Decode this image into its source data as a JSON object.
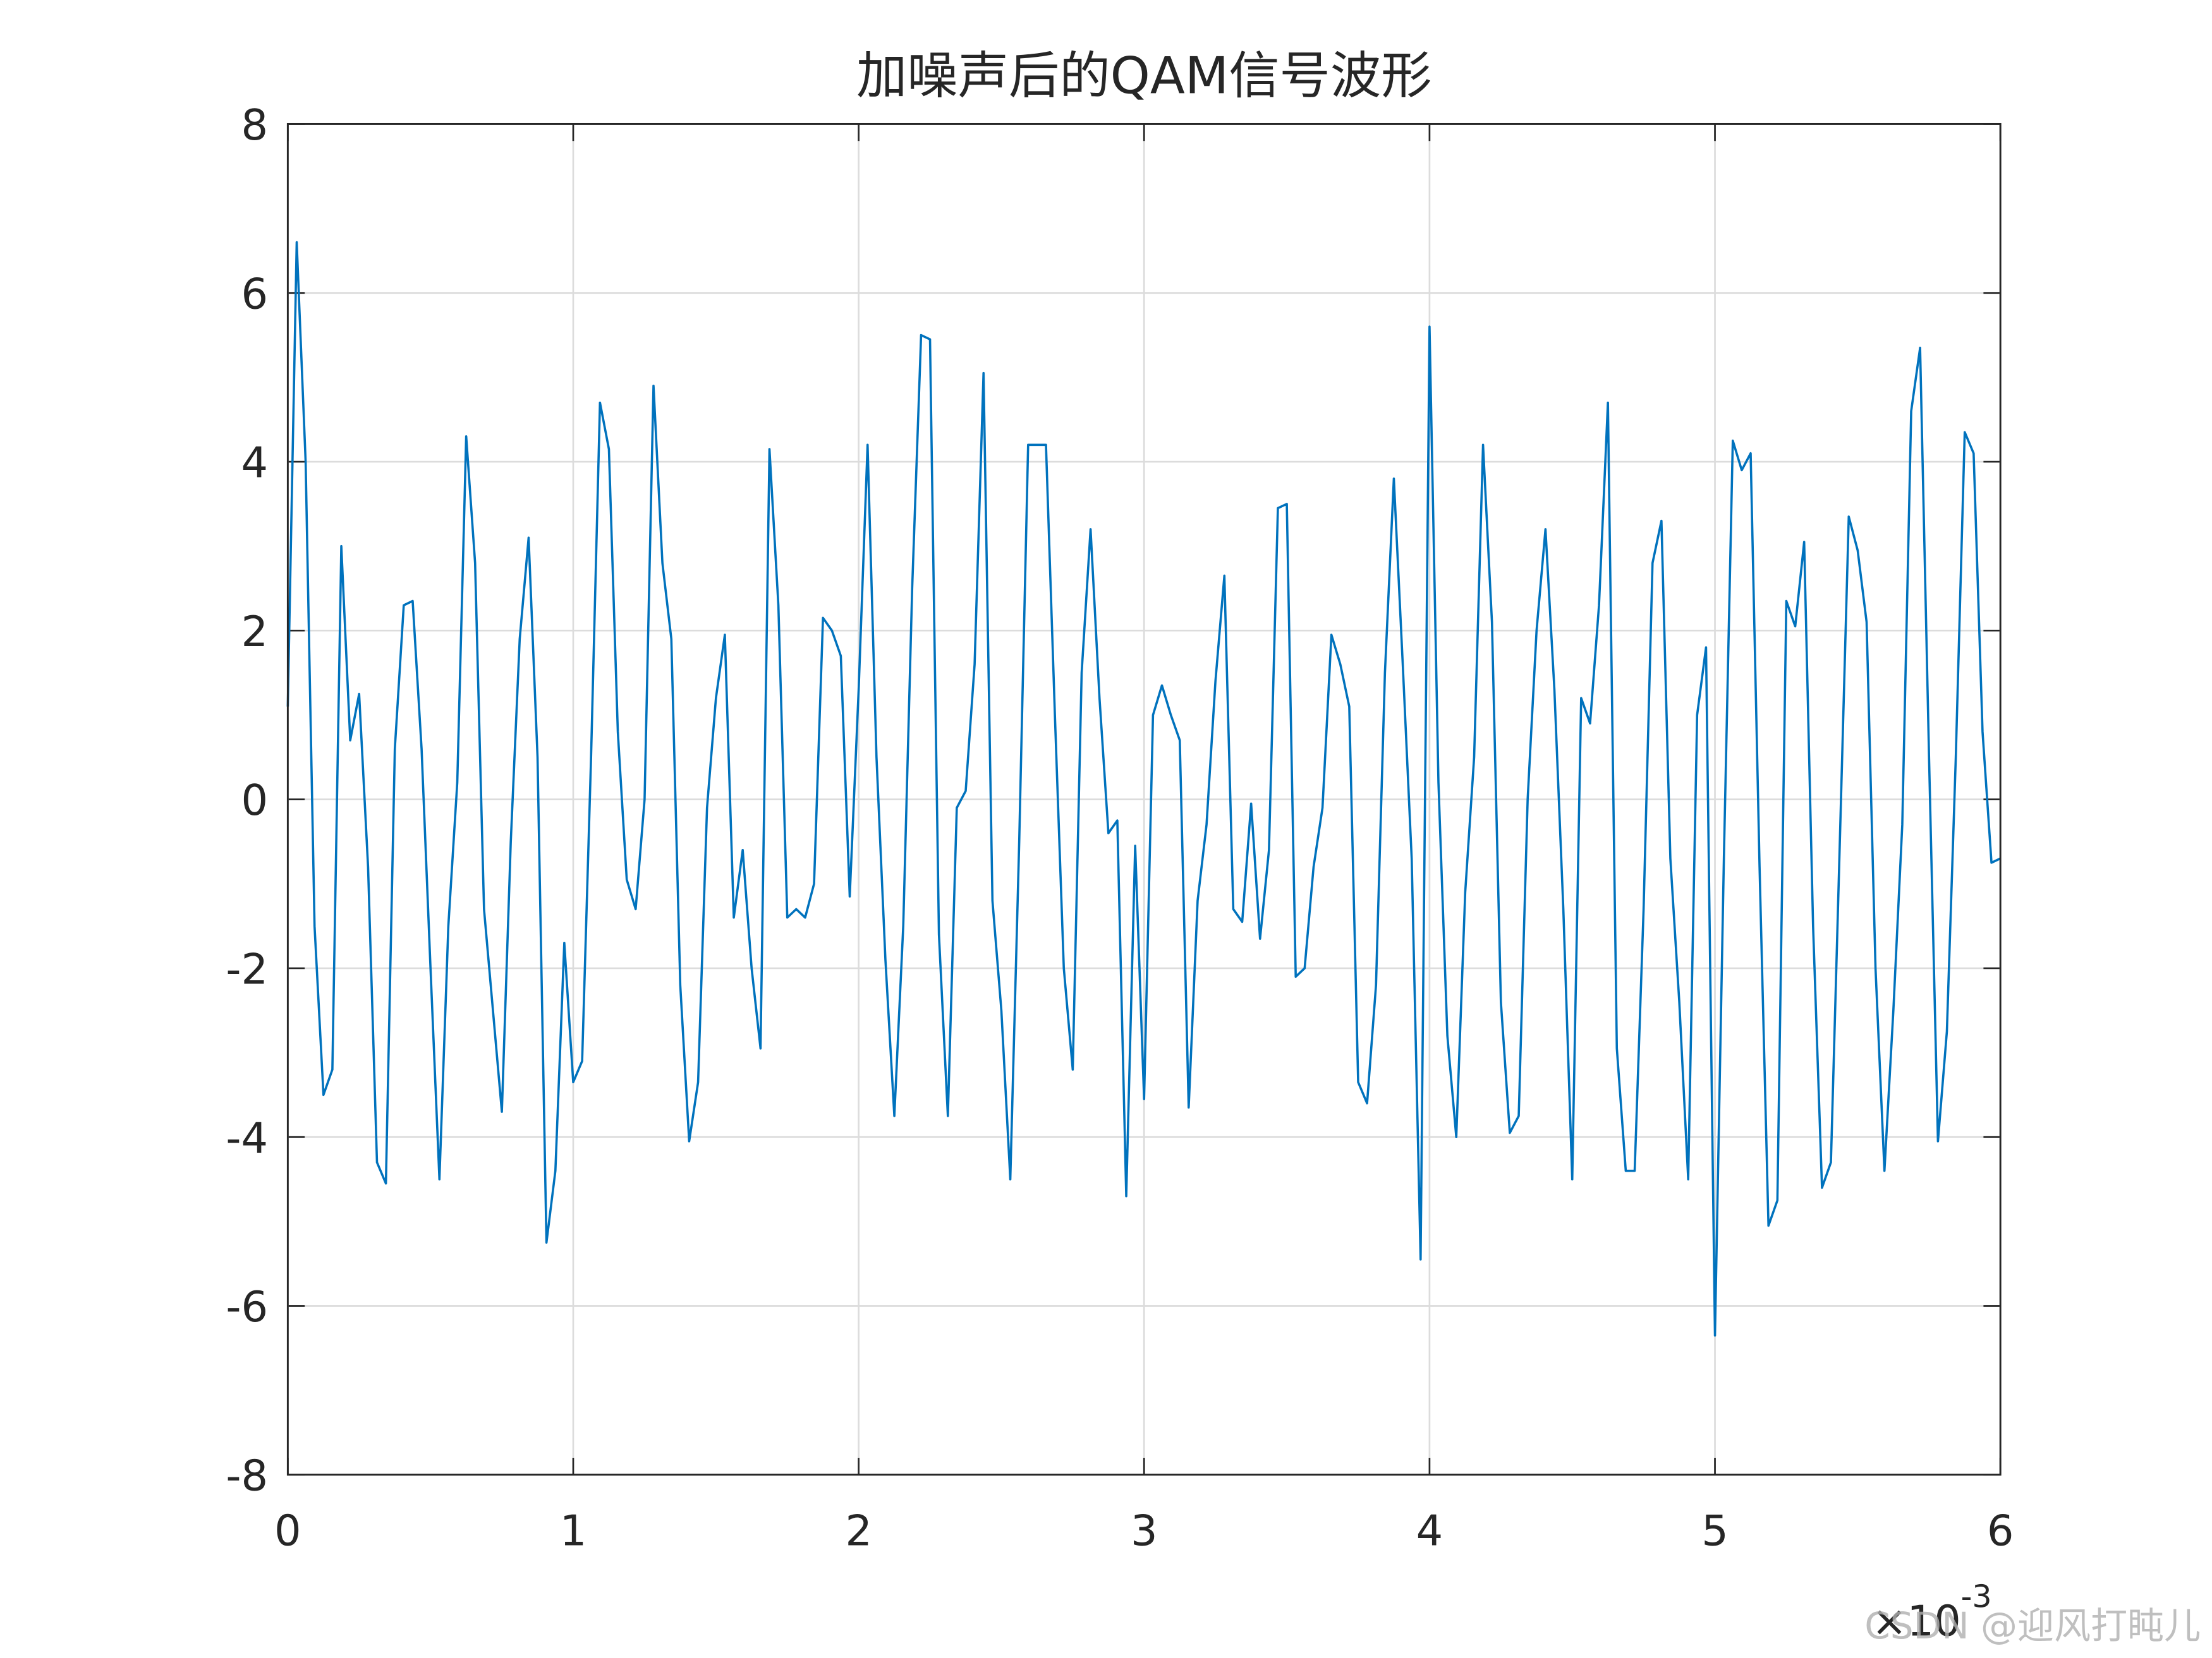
{
  "chart_data": {
    "type": "line",
    "title": "加噪声后的QAM信号波形",
    "x_multiplier": {
      "base": "×10",
      "exponent": "-3"
    },
    "watermark": "CSDN @迎风打盹儿",
    "xlim": [
      0,
      6
    ],
    "xticks": [
      0,
      1,
      2,
      3,
      4,
      5,
      6
    ],
    "ylim": [
      -8,
      8
    ],
    "yticks": [
      -8,
      -6,
      -4,
      -2,
      0,
      2,
      4,
      6,
      8
    ],
    "grid": true,
    "x": [
      0,
      0.03125,
      0.0625,
      0.09375,
      0.125,
      0.15625,
      0.1875,
      0.21875,
      0.25,
      0.28125,
      0.3125,
      0.34375,
      0.375,
      0.40625,
      0.4375,
      0.46875,
      0.5,
      0.53125,
      0.5625,
      0.59375,
      0.625,
      0.65625,
      0.6875,
      0.71875,
      0.75,
      0.78125,
      0.8125,
      0.84375,
      0.875,
      0.90625,
      0.9375,
      0.96875,
      1,
      1.03125,
      1.0625,
      1.09375,
      1.125,
      1.15625,
      1.1875,
      1.21875,
      1.25,
      1.28125,
      1.3125,
      1.34375,
      1.375,
      1.40625,
      1.4375,
      1.46875,
      1.5,
      1.53125,
      1.5625,
      1.59375,
      1.625,
      1.65625,
      1.6875,
      1.71875,
      1.75,
      1.78125,
      1.8125,
      1.84375,
      1.875,
      1.90625,
      1.9375,
      1.96875,
      2,
      2.03125,
      2.0625,
      2.09375,
      2.125,
      2.15625,
      2.1875,
      2.21875,
      2.25,
      2.28125,
      2.3125,
      2.34375,
      2.375,
      2.40625,
      2.4375,
      2.46875,
      2.5,
      2.53125,
      2.5625,
      2.59375,
      2.625,
      2.65625,
      2.6875,
      2.71875,
      2.75,
      2.78125,
      2.8125,
      2.84375,
      2.875,
      2.90625,
      2.9375,
      2.96875,
      3,
      3.03125,
      3.0625,
      3.09375,
      3.125,
      3.15625,
      3.1875,
      3.21875,
      3.25,
      3.28125,
      3.3125,
      3.34375,
      3.375,
      3.40625,
      3.4375,
      3.46875,
      3.5,
      3.53125,
      3.5625,
      3.59375,
      3.625,
      3.65625,
      3.6875,
      3.71875,
      3.75,
      3.78125,
      3.8125,
      3.84375,
      3.875,
      3.90625,
      3.9375,
      3.96875,
      4,
      4.03125,
      4.0625,
      4.09375,
      4.125,
      4.15625,
      4.1875,
      4.21875,
      4.25,
      4.28125,
      4.3125,
      4.34375,
      4.375,
      4.40625,
      4.4375,
      4.46875,
      4.5,
      4.53125,
      4.5625,
      4.59375,
      4.625,
      4.65625,
      4.6875,
      4.71875,
      4.75,
      4.78125,
      4.8125,
      4.84375,
      4.875,
      4.90625,
      4.9375,
      4.96875,
      5,
      5.03125,
      5.0625,
      5.09375,
      5.125,
      5.15625,
      5.1875,
      5.21875,
      5.25,
      5.28125,
      5.3125,
      5.34375,
      5.375,
      5.40625,
      5.4375,
      5.46875,
      5.5,
      5.53125,
      5.5625,
      5.59375,
      5.625,
      5.65625,
      5.6875,
      5.71875,
      5.75,
      5.78125,
      5.8125,
      5.84375,
      5.875,
      5.90625,
      5.9375,
      5.96875,
      6
    ],
    "series": [
      {
        "color": "#0072bd",
        "values": [
          1.1,
          6.6,
          4.0,
          -1.5,
          -3.5,
          -3.2,
          3.0,
          0.7,
          1.25,
          -0.8,
          -4.3,
          -4.55,
          0.6,
          2.3,
          2.35,
          0.6,
          -2.0,
          -4.5,
          -1.5,
          0.2,
          4.3,
          2.8,
          -1.3,
          -2.5,
          -3.7,
          -0.5,
          1.9,
          3.1,
          0.5,
          -5.25,
          -4.4,
          -1.7,
          -3.35,
          -3.1,
          0.5,
          4.7,
          4.15,
          0.8,
          -0.95,
          -1.3,
          0.0,
          4.9,
          2.8,
          1.9,
          -2.2,
          -4.05,
          -3.35,
          -0.1,
          1.2,
          1.95,
          -1.4,
          -0.6,
          -2.0,
          -2.95,
          4.15,
          2.3,
          -1.4,
          -1.3,
          -1.4,
          -1.0,
          2.15,
          2.0,
          1.7,
          -1.15,
          1.3,
          4.2,
          0.5,
          -1.9,
          -3.75,
          -1.5,
          2.5,
          5.5,
          5.45,
          -1.6,
          -3.75,
          -0.1,
          0.1,
          1.6,
          5.05,
          -1.2,
          -2.5,
          -4.5,
          -0.5,
          4.2,
          4.2,
          4.2,
          1.0,
          -2.0,
          -3.2,
          1.5,
          3.2,
          1.2,
          -0.4,
          -0.25,
          -4.7,
          -0.55,
          -3.55,
          1.0,
          1.35,
          1.0,
          0.7,
          -3.65,
          -1.2,
          -0.3,
          1.4,
          2.65,
          -1.3,
          -1.45,
          -0.05,
          -1.65,
          -0.6,
          3.45,
          3.5,
          -2.1,
          -2.0,
          -0.8,
          -0.1,
          1.95,
          1.6,
          1.1,
          -3.35,
          -3.6,
          -2.2,
          1.5,
          3.8,
          1.6,
          -0.7,
          -5.45,
          5.6,
          0.2,
          -2.8,
          -4.0,
          -1.1,
          0.5,
          4.2,
          2.1,
          -2.4,
          -3.95,
          -3.75,
          0.0,
          2.0,
          3.2,
          1.3,
          -1.3,
          -4.5,
          1.2,
          0.9,
          2.3,
          4.7,
          -2.95,
          -4.4,
          -4.4,
          -1.3,
          2.8,
          3.3,
          -0.7,
          -2.4,
          -4.5,
          1.0,
          1.8,
          -6.35,
          -0.7,
          4.25,
          3.9,
          4.1,
          -0.8,
          -5.05,
          -4.75,
          2.35,
          2.05,
          3.05,
          -1.5,
          -4.6,
          -4.3,
          -0.5,
          3.35,
          2.95,
          2.1,
          -2.0,
          -4.4,
          -2.5,
          -0.3,
          4.6,
          5.35,
          0.5,
          -4.05,
          -2.75,
          0.5,
          4.35,
          4.1,
          0.8,
          -0.75,
          -0.7
        ]
      }
    ]
  }
}
